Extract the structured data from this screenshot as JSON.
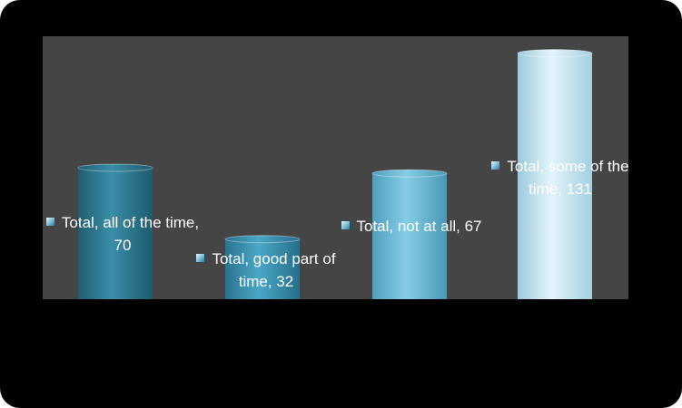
{
  "chart_data": {
    "type": "bar",
    "values": [
      70,
      32,
      67,
      131
    ],
    "value_labels": [
      "Total, all of the time, 70",
      "Total, good part of time, 32",
      "Total, not at all, 67",
      "Total, some of the time, 131"
    ],
    "ylim": [
      0,
      140
    ]
  }
}
